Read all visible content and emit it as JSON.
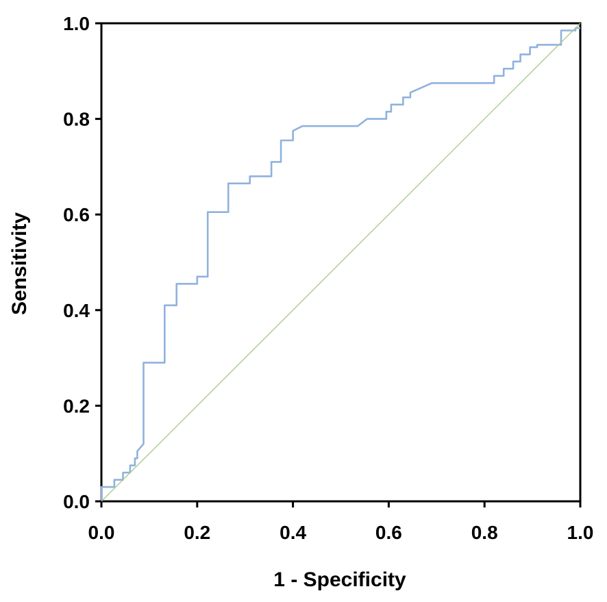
{
  "chart_data": {
    "type": "line",
    "xlabel": "1 - Specificity",
    "ylabel": "Sensitivity",
    "xlim": [
      0,
      1
    ],
    "ylim": [
      0,
      1
    ],
    "x_ticks": [
      "0.0",
      "0.2",
      "0.4",
      "0.6",
      "0.8",
      "1.0"
    ],
    "y_ticks": [
      "0.0",
      "0.2",
      "0.4",
      "0.6",
      "0.8",
      "1.0"
    ],
    "grid": false,
    "legend": "none",
    "series": [
      {
        "color": "#8fb2dd",
        "x": [
          0.0,
          0.0,
          0.015,
          0.015,
          0.027,
          0.027,
          0.045,
          0.045,
          0.06,
          0.06,
          0.07,
          0.07,
          0.075,
          0.075,
          0.088,
          0.088,
          0.132,
          0.132,
          0.157,
          0.157,
          0.2,
          0.2,
          0.222,
          0.222,
          0.265,
          0.265,
          0.31,
          0.31,
          0.355,
          0.355,
          0.375,
          0.375,
          0.4,
          0.4,
          0.42,
          0.535,
          0.555,
          0.595,
          0.595,
          0.605,
          0.605,
          0.63,
          0.63,
          0.645,
          0.645,
          0.69,
          0.82,
          0.82,
          0.84,
          0.84,
          0.86,
          0.86,
          0.875,
          0.875,
          0.895,
          0.895,
          0.91,
          0.91,
          0.96,
          0.96,
          0.99,
          0.99,
          1.0
        ],
        "y": [
          0.0,
          0.03,
          0.03,
          0.03,
          0.03,
          0.045,
          0.045,
          0.06,
          0.06,
          0.075,
          0.075,
          0.09,
          0.09,
          0.105,
          0.12,
          0.29,
          0.29,
          0.41,
          0.41,
          0.455,
          0.455,
          0.47,
          0.47,
          0.605,
          0.605,
          0.665,
          0.665,
          0.68,
          0.68,
          0.71,
          0.71,
          0.755,
          0.755,
          0.775,
          0.785,
          0.785,
          0.8,
          0.8,
          0.815,
          0.815,
          0.83,
          0.83,
          0.845,
          0.845,
          0.855,
          0.875,
          0.875,
          0.89,
          0.89,
          0.905,
          0.905,
          0.92,
          0.92,
          0.935,
          0.935,
          0.95,
          0.95,
          0.955,
          0.955,
          0.985,
          0.985,
          0.99,
          0.99
        ]
      },
      {
        "color": "#a9cc8f",
        "x": [
          0,
          1
        ],
        "y": [
          0,
          1
        ]
      }
    ]
  }
}
